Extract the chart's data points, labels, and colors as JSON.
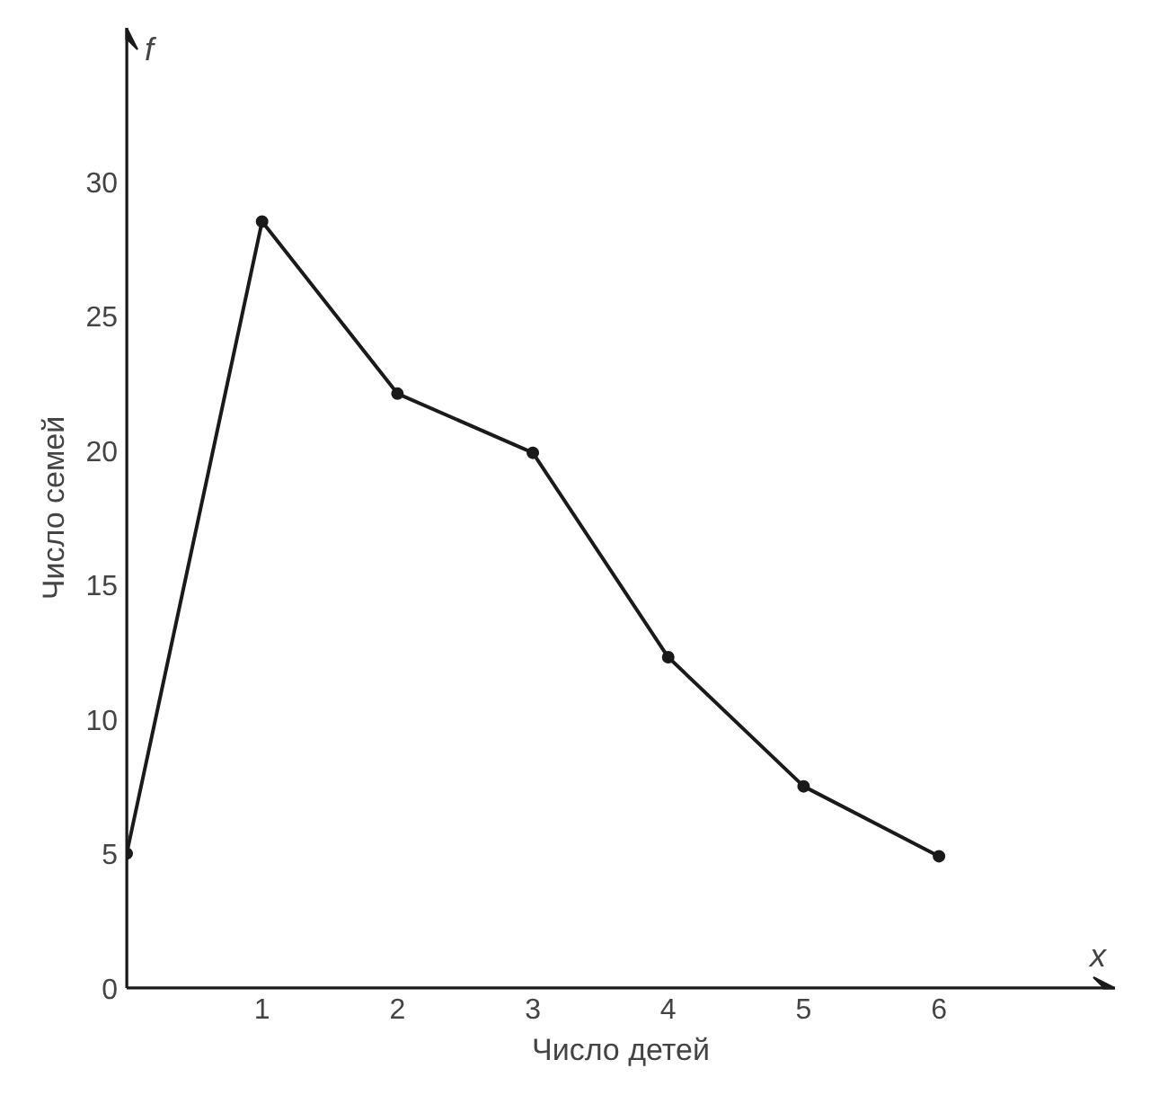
{
  "chart_data": {
    "type": "line",
    "xlabel": "Число детей",
    "ylabel": "Число семей",
    "annotations": [
      "f",
      "x"
    ],
    "x": [
      0,
      1,
      2,
      3,
      4,
      5,
      6
    ],
    "series": [
      {
        "color": "#1a1a1a",
        "values": [
          5,
          28.5,
          22.1,
          19.9,
          12.3,
          7.5,
          4.9
        ]
      }
    ],
    "xlim": [
      0,
      7.3
    ],
    "ylim": [
      0,
      35.7
    ],
    "xticks": [
      1,
      2,
      3,
      4,
      5,
      6
    ],
    "yticks": [
      0,
      5,
      10,
      15,
      20,
      25,
      30
    ],
    "grid": false,
    "marker": "circle",
    "line_style": "solid"
  }
}
